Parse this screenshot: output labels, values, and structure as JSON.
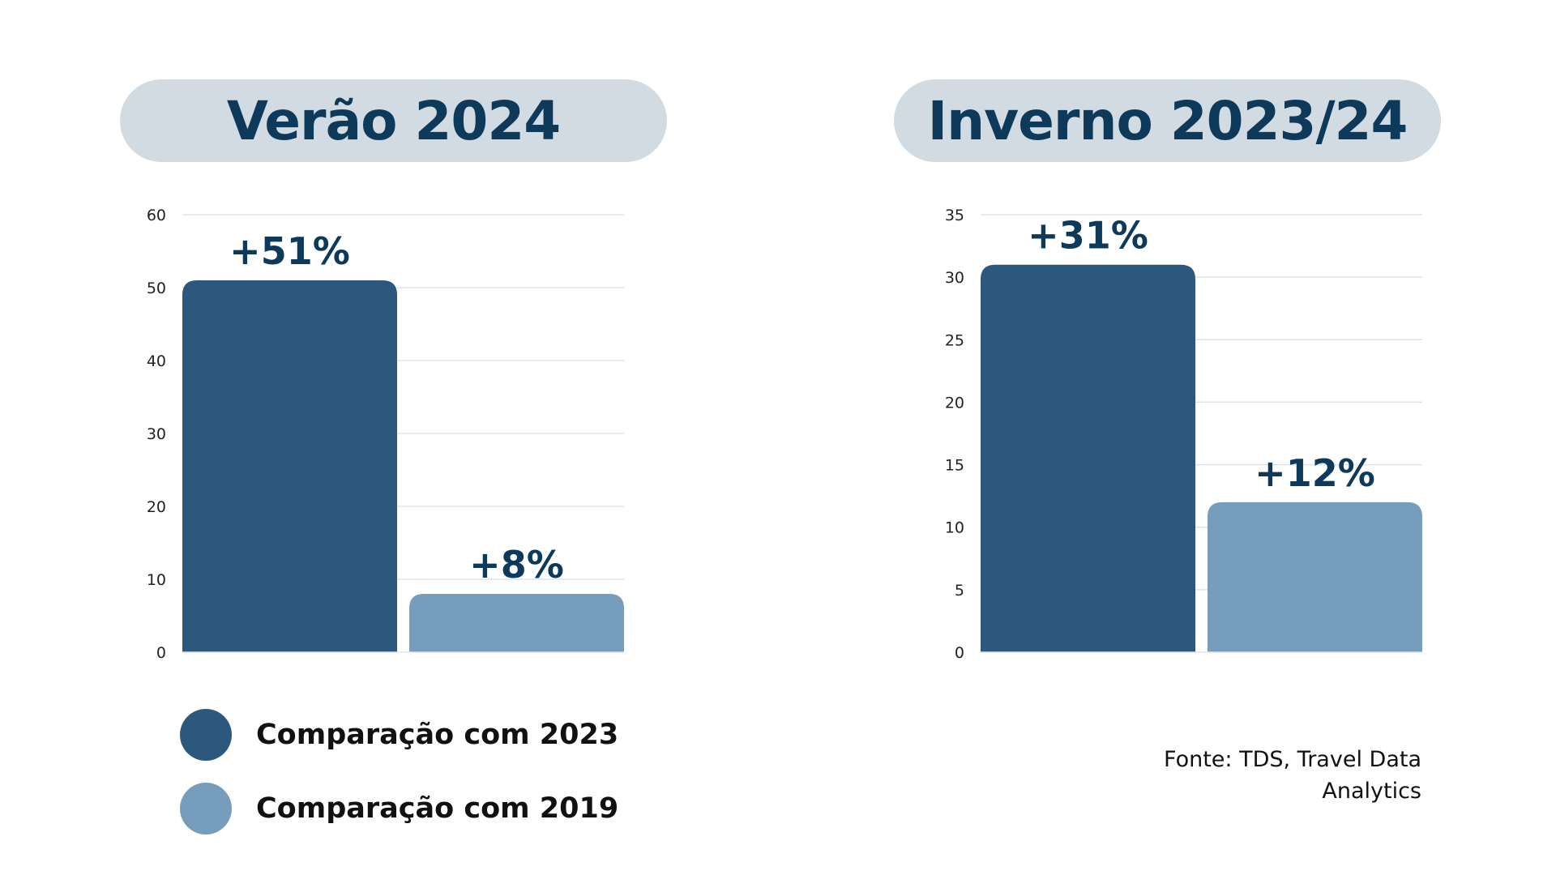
{
  "chart_data": [
    {
      "type": "bar",
      "title": "Verão 2024",
      "categories": [
        "Comparação com 2023",
        "Comparação com 2019"
      ],
      "values": [
        51,
        8
      ],
      "data_labels": [
        "+51%",
        "+8%"
      ],
      "colors": [
        "#2d587e",
        "#779dbc"
      ],
      "ylim": [
        0,
        60
      ],
      "yticks": [
        0,
        10,
        20,
        30,
        40,
        50,
        60
      ],
      "grid": true
    },
    {
      "type": "bar",
      "title": "Inverno 2023/24",
      "categories": [
        "Comparação com 2023",
        "Comparação com 2019"
      ],
      "values": [
        31,
        12
      ],
      "data_labels": [
        "+31%",
        "+12%"
      ],
      "colors": [
        "#2d587e",
        "#779dbc"
      ],
      "ylim": [
        0,
        35
      ],
      "yticks": [
        0,
        5,
        10,
        15,
        20,
        25,
        30,
        35
      ],
      "grid": true
    }
  ],
  "legend": [
    {
      "label": "Comparação com 2023",
      "color": "#2d587e"
    },
    {
      "label": "Comparação com 2019",
      "color": "#779dbc"
    }
  ],
  "source": {
    "line1": "Fonte: TDS, Travel Data",
    "line2": "Analytics"
  }
}
